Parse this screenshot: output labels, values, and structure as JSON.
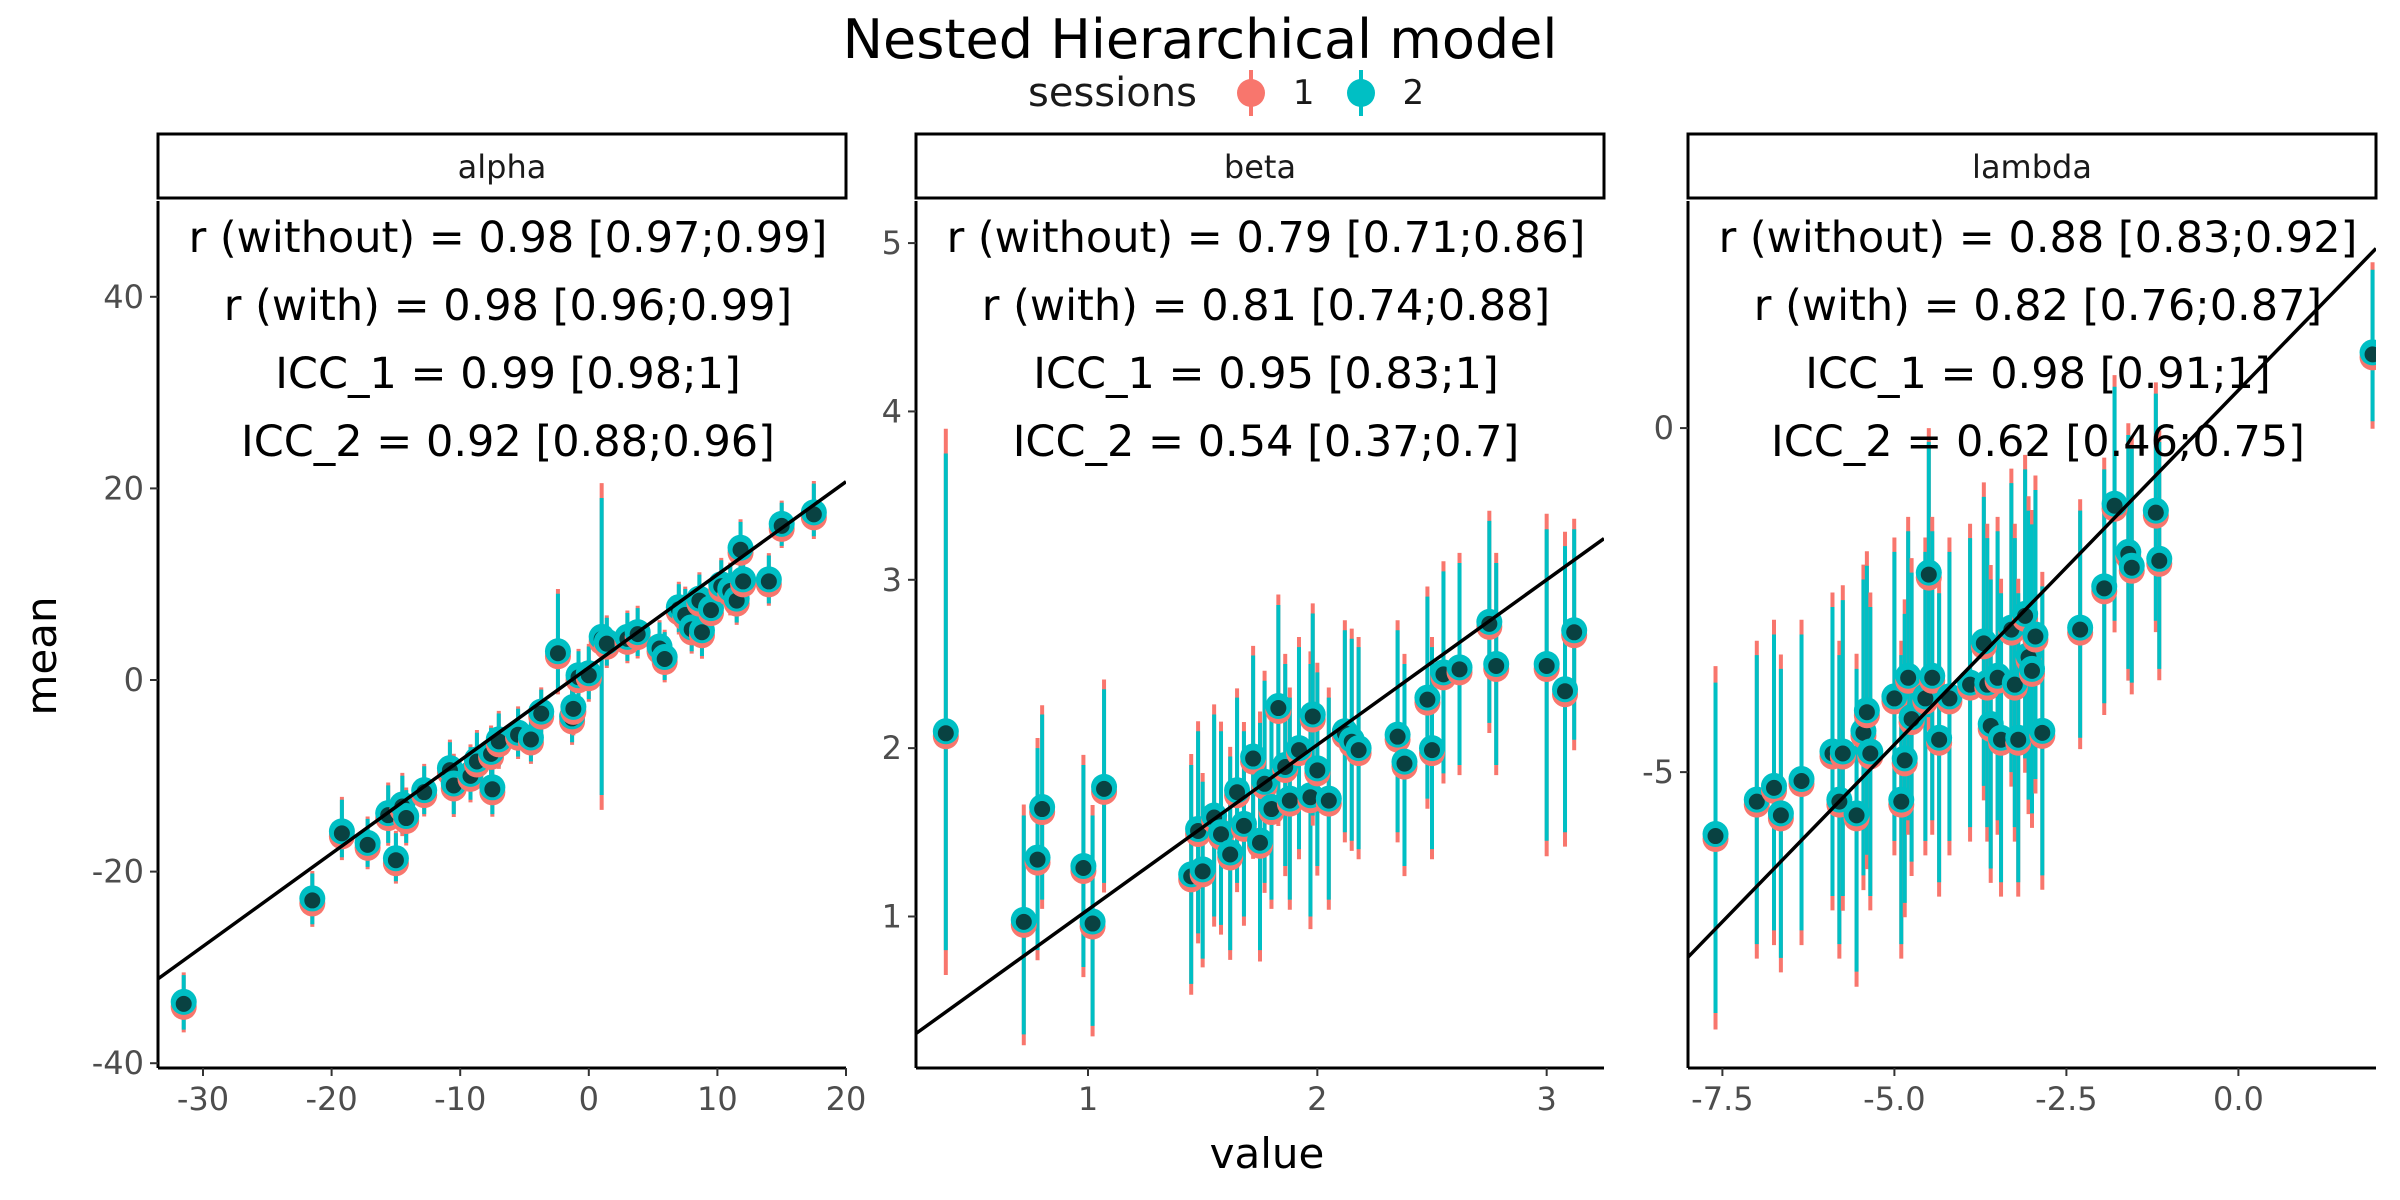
{
  "title": "Nested Hierarchical model",
  "legend": {
    "title": "sessions",
    "items": [
      {
        "label": "1",
        "color": "#F8766D"
      },
      {
        "label": "2",
        "color": "#00BFC4"
      }
    ]
  },
  "xlabel": "value",
  "ylabel": "mean",
  "chart_data": [
    {
      "type": "scatter",
      "panel": "alpha",
      "xlim": [
        -33.5,
        20
      ],
      "ylim": [
        -40.5,
        50
      ],
      "xticks": [
        -30,
        -20,
        -10,
        0,
        10,
        20
      ],
      "xtick_labels": [
        "-30",
        "-20",
        "-10",
        "0",
        "10",
        "20"
      ],
      "yticks": [
        -40,
        -20,
        0,
        20,
        40
      ],
      "ytick_labels": [
        "-40",
        "-20",
        "0",
        "20",
        "40"
      ],
      "fit_line": {
        "intercept": 1.3,
        "slope": 0.97
      },
      "annotations": [
        "r (without) = 0.98 [0.97;0.99]",
        "r (with) = 0.98 [0.96;0.99]",
        "ICC_1 = 0.99 [0.98;1]",
        "ICC_2 = 0.92 [0.88;0.96]"
      ],
      "points": [
        {
          "x": -31.5,
          "y": -33.6,
          "lo": -36.5,
          "hi": -30.8
        },
        {
          "x": -21.5,
          "y": -22.8,
          "lo": -25.5,
          "hi": -20.2
        },
        {
          "x": -19.2,
          "y": -15.8,
          "lo": -18.5,
          "hi": -12.5
        },
        {
          "x": -17.2,
          "y": -17.0,
          "lo": -19.5,
          "hi": -14.5
        },
        {
          "x": -15.6,
          "y": -13.9,
          "lo": -17.0,
          "hi": -11.0
        },
        {
          "x": -15.0,
          "y": -18.6,
          "lo": -21.0,
          "hi": -16.0
        },
        {
          "x": -14.5,
          "y": -13.0,
          "lo": -16.0,
          "hi": -10.0
        },
        {
          "x": -14.2,
          "y": -14.2,
          "lo": -17.0,
          "hi": -11.5
        },
        {
          "x": -12.8,
          "y": -11.5,
          "lo": -14.0,
          "hi": -9.0
        },
        {
          "x": -10.8,
          "y": -9.2,
          "lo": -12.0,
          "hi": -6.5
        },
        {
          "x": -10.5,
          "y": -10.8,
          "lo": -14.0,
          "hi": -8.0
        },
        {
          "x": -9.2,
          "y": -9.8,
          "lo": -12.5,
          "hi": -7.0
        },
        {
          "x": -8.7,
          "y": -8.3,
          "lo": -11.0,
          "hi": -5.5
        },
        {
          "x": -7.6,
          "y": -7.5,
          "lo": -10.0,
          "hi": -5.0
        },
        {
          "x": -7.5,
          "y": -11.2,
          "lo": -14.0,
          "hi": -8.5
        },
        {
          "x": -7.0,
          "y": -6.2,
          "lo": -9.0,
          "hi": -3.5
        },
        {
          "x": -5.5,
          "y": -5.5,
          "lo": -8.0,
          "hi": -3.0
        },
        {
          "x": -4.5,
          "y": -6.0,
          "lo": -8.5,
          "hi": -3.5
        },
        {
          "x": -3.7,
          "y": -3.3,
          "lo": -5.5,
          "hi": -1.0
        },
        {
          "x": -2.4,
          "y": 3.0,
          "lo": -1.0,
          "hi": 9.0
        },
        {
          "x": -1.3,
          "y": -3.8,
          "lo": -6.5,
          "hi": -1.0
        },
        {
          "x": -1.2,
          "y": -2.8,
          "lo": -5.5,
          "hi": 0.0
        },
        {
          "x": -0.8,
          "y": 0.5,
          "lo": -2.0,
          "hi": 3.0
        },
        {
          "x": 0.0,
          "y": 0.7,
          "lo": -2.0,
          "hi": 3.5
        },
        {
          "x": 1.0,
          "y": 4.5,
          "lo": -12.0,
          "hi": 19.0
        },
        {
          "x": 1.4,
          "y": 4.0,
          "lo": 1.5,
          "hi": 6.5
        },
        {
          "x": 3.0,
          "y": 4.5,
          "lo": 2.0,
          "hi": 7.0
        },
        {
          "x": 3.8,
          "y": 5.0,
          "lo": 2.5,
          "hi": 7.5
        },
        {
          "x": 5.5,
          "y": 3.5,
          "lo": 1.0,
          "hi": 6.0
        },
        {
          "x": 5.9,
          "y": 2.4,
          "lo": 0.0,
          "hi": 5.0
        },
        {
          "x": 7.0,
          "y": 7.6,
          "lo": 5.0,
          "hi": 10.0
        },
        {
          "x": 7.5,
          "y": 7.0,
          "lo": 4.5,
          "hi": 9.5
        },
        {
          "x": 8.0,
          "y": 5.5,
          "lo": 3.0,
          "hi": 8.0
        },
        {
          "x": 8.6,
          "y": 8.5,
          "lo": 6.0,
          "hi": 11.0
        },
        {
          "x": 8.8,
          "y": 5.2,
          "lo": 2.5,
          "hi": 8.0
        },
        {
          "x": 9.5,
          "y": 7.5,
          "lo": 5.0,
          "hi": 10.0
        },
        {
          "x": 10.3,
          "y": 10.0,
          "lo": 7.5,
          "hi": 12.5
        },
        {
          "x": 11.0,
          "y": 9.5,
          "lo": 7.0,
          "hi": 12.0
        },
        {
          "x": 11.8,
          "y": 13.8,
          "lo": 11.0,
          "hi": 16.5
        },
        {
          "x": 11.5,
          "y": 8.5,
          "lo": 6.0,
          "hi": 11.0
        },
        {
          "x": 12.0,
          "y": 10.5,
          "lo": 8.0,
          "hi": 13.0
        },
        {
          "x": 14.0,
          "y": 10.5,
          "lo": 8.0,
          "hi": 13.0
        },
        {
          "x": 15.0,
          "y": 16.3,
          "lo": 14.0,
          "hi": 18.5
        },
        {
          "x": 17.5,
          "y": 17.5,
          "lo": 15.0,
          "hi": 20.5
        }
      ]
    },
    {
      "type": "scatter",
      "panel": "beta",
      "xlim": [
        0.25,
        3.25
      ],
      "ylim": [
        0.1,
        5.25
      ],
      "xticks": [
        1,
        2,
        3
      ],
      "xtick_labels": [
        "1",
        "2",
        "3"
      ],
      "yticks": [
        1,
        2,
        3,
        4,
        5
      ],
      "ytick_labels": [
        "1",
        "2",
        "3",
        "4",
        "5"
      ],
      "fit_line": {
        "intercept": 0.06,
        "slope": 0.98
      },
      "annotations": [
        "r (without) = 0.79 [0.71;0.86]",
        "r (with) = 0.81 [0.74;0.88]",
        "ICC_1 = 0.95 [0.83;1]",
        "ICC_2 = 0.54 [0.37;0.7]"
      ],
      "points": [
        {
          "x": 0.38,
          "y": 2.1,
          "lo": 0.8,
          "hi": 3.75
        },
        {
          "x": 0.72,
          "y": 0.98,
          "lo": 0.3,
          "hi": 1.6
        },
        {
          "x": 0.78,
          "y": 1.35,
          "lo": 0.8,
          "hi": 2.0
        },
        {
          "x": 0.8,
          "y": 1.65,
          "lo": 1.1,
          "hi": 2.2
        },
        {
          "x": 0.98,
          "y": 1.3,
          "lo": 0.7,
          "hi": 1.9
        },
        {
          "x": 1.02,
          "y": 0.97,
          "lo": 0.35,
          "hi": 1.6
        },
        {
          "x": 1.07,
          "y": 1.77,
          "lo": 1.2,
          "hi": 2.35
        },
        {
          "x": 1.45,
          "y": 1.25,
          "lo": 0.6,
          "hi": 1.9
        },
        {
          "x": 1.48,
          "y": 1.52,
          "lo": 0.9,
          "hi": 2.1
        },
        {
          "x": 1.5,
          "y": 1.28,
          "lo": 0.75,
          "hi": 1.8
        },
        {
          "x": 1.55,
          "y": 1.6,
          "lo": 1.0,
          "hi": 2.2
        },
        {
          "x": 1.58,
          "y": 1.5,
          "lo": 0.95,
          "hi": 2.1
        },
        {
          "x": 1.62,
          "y": 1.38,
          "lo": 0.8,
          "hi": 1.95
        },
        {
          "x": 1.65,
          "y": 1.75,
          "lo": 1.2,
          "hi": 2.3
        },
        {
          "x": 1.68,
          "y": 1.55,
          "lo": 1.0,
          "hi": 2.1
        },
        {
          "x": 1.72,
          "y": 1.95,
          "lo": 1.4,
          "hi": 2.55
        },
        {
          "x": 1.75,
          "y": 1.45,
          "lo": 0.8,
          "hi": 2.15
        },
        {
          "x": 1.77,
          "y": 1.8,
          "lo": 1.2,
          "hi": 2.4
        },
        {
          "x": 1.8,
          "y": 1.65,
          "lo": 1.1,
          "hi": 2.2
        },
        {
          "x": 1.83,
          "y": 2.25,
          "lo": 1.6,
          "hi": 2.85
        },
        {
          "x": 1.86,
          "y": 1.9,
          "lo": 1.3,
          "hi": 2.5
        },
        {
          "x": 1.88,
          "y": 1.7,
          "lo": 1.1,
          "hi": 2.3
        },
        {
          "x": 1.92,
          "y": 2.0,
          "lo": 1.4,
          "hi": 2.6
        },
        {
          "x": 1.97,
          "y": 1.72,
          "lo": 1.0,
          "hi": 2.5
        },
        {
          "x": 1.98,
          "y": 2.2,
          "lo": 1.6,
          "hi": 2.8
        },
        {
          "x": 2.0,
          "y": 1.88,
          "lo": 1.3,
          "hi": 2.45
        },
        {
          "x": 2.05,
          "y": 1.7,
          "lo": 1.1,
          "hi": 2.3
        },
        {
          "x": 2.12,
          "y": 2.1,
          "lo": 1.5,
          "hi": 2.7
        },
        {
          "x": 2.15,
          "y": 2.05,
          "lo": 1.45,
          "hi": 2.65
        },
        {
          "x": 2.18,
          "y": 2.0,
          "lo": 1.4,
          "hi": 2.6
        },
        {
          "x": 2.35,
          "y": 2.08,
          "lo": 1.5,
          "hi": 2.7
        },
        {
          "x": 2.38,
          "y": 1.92,
          "lo": 1.3,
          "hi": 2.5
        },
        {
          "x": 2.48,
          "y": 2.3,
          "lo": 1.7,
          "hi": 2.9
        },
        {
          "x": 2.5,
          "y": 2.0,
          "lo": 1.4,
          "hi": 2.6
        },
        {
          "x": 2.55,
          "y": 2.45,
          "lo": 1.85,
          "hi": 3.05
        },
        {
          "x": 2.62,
          "y": 2.48,
          "lo": 1.9,
          "hi": 3.1
        },
        {
          "x": 2.75,
          "y": 2.75,
          "lo": 2.15,
          "hi": 3.35
        },
        {
          "x": 2.78,
          "y": 2.5,
          "lo": 1.9,
          "hi": 3.1
        },
        {
          "x": 3.0,
          "y": 2.5,
          "lo": 1.45,
          "hi": 3.3
        },
        {
          "x": 3.08,
          "y": 2.35,
          "lo": 1.5,
          "hi": 3.2
        },
        {
          "x": 3.12,
          "y": 2.7,
          "lo": 2.05,
          "hi": 3.3
        }
      ]
    },
    {
      "type": "scatter",
      "panel": "lambda",
      "xlim": [
        -8.0,
        2.0
      ],
      "ylim": [
        -9.3,
        3.3
      ],
      "xticks": [
        -7.5,
        -5.0,
        -2.5,
        0.0
      ],
      "xtick_labels": [
        "-7.5",
        "-5.0",
        "-2.5",
        "0.0"
      ],
      "yticks": [
        -5,
        0
      ],
      "ytick_labels": [
        "-5",
        "0"
      ],
      "fit_line": {
        "intercept": 0.55,
        "slope": 1.03
      },
      "annotations": [
        "r (without) = 0.88 [0.83;0.92]",
        "r (with) = 0.82 [0.76;0.87]",
        "ICC_1 = 0.98 [0.91;1]",
        "ICC_2 = 0.62 [0.46;0.75]"
      ],
      "points": [
        {
          "x": -7.6,
          "y": -5.9,
          "lo": -8.5,
          "hi": -3.7
        },
        {
          "x": -7.0,
          "y": -5.4,
          "lo": -7.5,
          "hi": -3.3
        },
        {
          "x": -6.75,
          "y": -5.2,
          "lo": -7.3,
          "hi": -3.0
        },
        {
          "x": -6.65,
          "y": -5.6,
          "lo": -7.7,
          "hi": -3.5
        },
        {
          "x": -6.35,
          "y": -5.1,
          "lo": -7.3,
          "hi": -3.0
        },
        {
          "x": -5.9,
          "y": -4.7,
          "lo": -6.8,
          "hi": -2.6
        },
        {
          "x": -5.8,
          "y": -5.4,
          "lo": -7.5,
          "hi": -3.3
        },
        {
          "x": -5.75,
          "y": -4.7,
          "lo": -6.8,
          "hi": -2.5
        },
        {
          "x": -5.55,
          "y": -5.6,
          "lo": -7.9,
          "hi": -3.5
        },
        {
          "x": -5.45,
          "y": -4.4,
          "lo": -6.5,
          "hi": -2.2
        },
        {
          "x": -5.4,
          "y": -4.1,
          "lo": -6.2,
          "hi": -2.0
        },
        {
          "x": -5.35,
          "y": -4.7,
          "lo": -6.8,
          "hi": -2.6
        },
        {
          "x": -5.0,
          "y": -3.9,
          "lo": -6.0,
          "hi": -1.8
        },
        {
          "x": -4.9,
          "y": -5.4,
          "lo": -7.5,
          "hi": -3.3
        },
        {
          "x": -4.85,
          "y": -4.8,
          "lo": -6.9,
          "hi": -2.7
        },
        {
          "x": -4.8,
          "y": -3.6,
          "lo": -5.7,
          "hi": -1.5
        },
        {
          "x": -4.75,
          "y": -4.2,
          "lo": -6.3,
          "hi": -2.1
        },
        {
          "x": -4.55,
          "y": -3.9,
          "lo": -6.0,
          "hi": -1.8
        },
        {
          "x": -4.5,
          "y": -2.1,
          "lo": -4.2,
          "hi": -0.2
        },
        {
          "x": -4.45,
          "y": -3.6,
          "lo": -5.7,
          "hi": -1.5
        },
        {
          "x": -4.35,
          "y": -4.5,
          "lo": -6.6,
          "hi": -2.4
        },
        {
          "x": -4.2,
          "y": -3.9,
          "lo": -6.0,
          "hi": -1.8
        },
        {
          "x": -3.9,
          "y": -3.7,
          "lo": -5.8,
          "hi": -1.6
        },
        {
          "x": -3.7,
          "y": -3.1,
          "lo": -5.2,
          "hi": -1.0
        },
        {
          "x": -3.65,
          "y": -3.7,
          "lo": -5.8,
          "hi": -1.6
        },
        {
          "x": -3.6,
          "y": -4.3,
          "lo": -6.4,
          "hi": -2.2
        },
        {
          "x": -3.5,
          "y": -3.6,
          "lo": -5.7,
          "hi": -1.5
        },
        {
          "x": -3.45,
          "y": -4.5,
          "lo": -6.6,
          "hi": -2.4
        },
        {
          "x": -3.3,
          "y": -2.9,
          "lo": -5.0,
          "hi": -0.8
        },
        {
          "x": -3.25,
          "y": -3.7,
          "lo": -5.8,
          "hi": -1.6
        },
        {
          "x": -3.2,
          "y": -4.5,
          "lo": -6.6,
          "hi": -2.4
        },
        {
          "x": -3.1,
          "y": -2.7,
          "lo": -4.8,
          "hi": -0.6
        },
        {
          "x": -3.05,
          "y": -3.3,
          "lo": -5.4,
          "hi": -1.2
        },
        {
          "x": -3.0,
          "y": -3.5,
          "lo": -5.6,
          "hi": -1.4
        },
        {
          "x": -2.95,
          "y": -3.0,
          "lo": -5.1,
          "hi": -0.9
        },
        {
          "x": -2.85,
          "y": -4.4,
          "lo": -6.5,
          "hi": -2.3
        },
        {
          "x": -2.3,
          "y": -2.9,
          "lo": -4.5,
          "hi": -1.2
        },
        {
          "x": -1.95,
          "y": -2.3,
          "lo": -4.0,
          "hi": -0.6
        },
        {
          "x": -1.8,
          "y": -1.1,
          "lo": -2.8,
          "hi": 0.6
        },
        {
          "x": -1.6,
          "y": -1.8,
          "lo": -3.5,
          "hi": -0.1
        },
        {
          "x": -1.55,
          "y": -2.0,
          "lo": -3.7,
          "hi": -0.3
        },
        {
          "x": -1.2,
          "y": -1.2,
          "lo": -2.8,
          "hi": 0.5
        },
        {
          "x": -1.15,
          "y": -1.9,
          "lo": -3.5,
          "hi": -0.2
        },
        {
          "x": 1.95,
          "y": 1.1,
          "lo": 0.1,
          "hi": 2.3
        }
      ]
    }
  ]
}
